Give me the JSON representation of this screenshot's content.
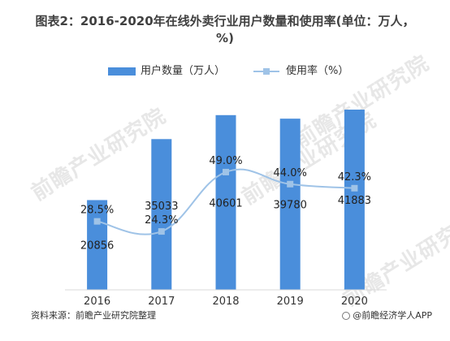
{
  "title": "图表2：2016-2020年在线外卖行业用户数量和使用率(单位：万人，%)",
  "legend": {
    "bar_label": "用户数量（万人）",
    "line_label": "使用率（%）"
  },
  "source": "资料来源：前瞻产业研究院整理",
  "brand": "@前瞻经济学人APP",
  "watermark": "前瞻产业研究院",
  "colors": {
    "bar": "#4A8EDB",
    "line": "#9FC3E7",
    "axis": "#D9D9D9"
  },
  "chart_data": {
    "type": "bar",
    "categories": [
      "2016",
      "2017",
      "2018",
      "2019",
      "2020"
    ],
    "title": "图表2：2016-2020年在线外卖行业用户数量和使用率(单位：万人，%)",
    "xlabel": "",
    "ylabel": "",
    "legend_position": "top",
    "grid": false,
    "series": [
      {
        "name": "用户数量（万人）",
        "type": "bar",
        "axis": "left",
        "values": [
          20856,
          35033,
          40601,
          39780,
          41883
        ],
        "labels": [
          "20856",
          "35033",
          "40601",
          "39780",
          "41883"
        ]
      },
      {
        "name": "使用率（%）",
        "type": "line",
        "axis": "right",
        "smooth": true,
        "values": [
          28.5,
          24.3,
          49.0,
          44.0,
          42.3
        ],
        "labels": [
          "28.5%",
          "24.3%",
          "49.0%",
          "44.0%",
          "42.3%"
        ]
      }
    ],
    "ylim_left": [
      0,
      41883
    ],
    "ylim_right": [
      0,
      75
    ]
  }
}
